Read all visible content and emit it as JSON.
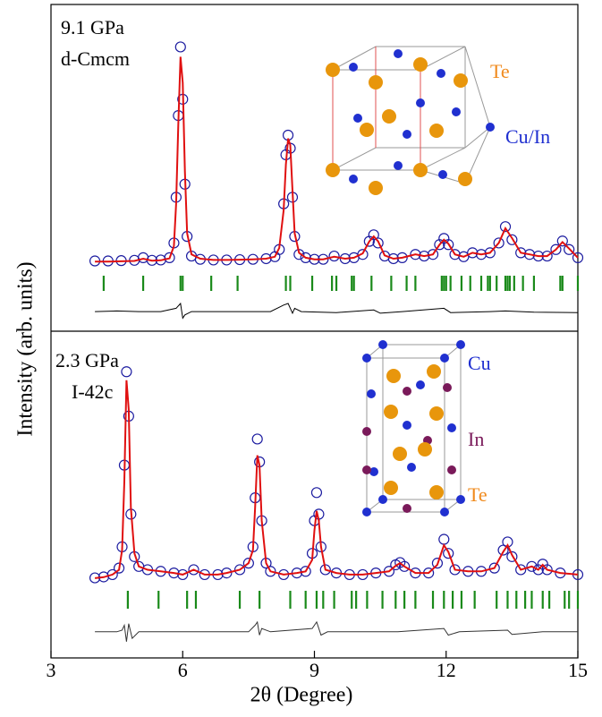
{
  "chart_data": {
    "type": "rietveld",
    "xlabel": "2θ  (Degree)",
    "ylabel": "Intensity (arb. units)",
    "xlim": [
      3,
      15
    ],
    "xticks": [
      3,
      6,
      9,
      12,
      15
    ],
    "panels": [
      {
        "annotations": [
          "9.1 GPa",
          "d-Cmcm"
        ],
        "atom_labels": [
          {
            "text": "Te",
            "color": "#f08a1c"
          },
          {
            "text": "Cu/In",
            "color": "#1f2fd0"
          }
        ],
        "ylim": [
          -21,
          79
        ],
        "x": [
          4.0,
          4.3,
          4.6,
          4.9,
          5.1,
          5.3,
          5.5,
          5.7,
          5.8,
          5.85,
          5.9,
          5.95,
          6.0,
          6.05,
          6.1,
          6.2,
          6.4,
          6.7,
          7.0,
          7.3,
          7.6,
          7.9,
          8.1,
          8.2,
          8.3,
          8.35,
          8.4,
          8.45,
          8.5,
          8.55,
          8.65,
          8.8,
          9.0,
          9.2,
          9.45,
          9.7,
          9.9,
          10.1,
          10.25,
          10.35,
          10.45,
          10.6,
          10.8,
          11.0,
          11.3,
          11.5,
          11.7,
          11.85,
          11.95,
          12.05,
          12.2,
          12.4,
          12.6,
          12.8,
          13.0,
          13.2,
          13.35,
          13.5,
          13.7,
          13.9,
          14.1,
          14.3,
          14.5,
          14.65,
          14.8,
          15.0
        ],
        "observed": {
          "color": "#1c1ca0",
          "values": [
            0.5,
            0.5,
            0.6,
            0.7,
            1.5,
            0.7,
            0.8,
            1.5,
            6,
            20,
            45,
            66,
            50,
            24,
            8,
            2,
            1,
            0.8,
            0.8,
            0.9,
            1,
            1.2,
            1.8,
            4,
            18,
            33,
            39,
            35,
            20,
            8,
            2.5,
            1.5,
            1,
            1,
            2,
            1.2,
            1.5,
            2.5,
            6.5,
            8.5,
            6,
            2,
            1.2,
            1.5,
            2.5,
            2,
            2.5,
            5.5,
            7.4,
            5.5,
            2.5,
            1.8,
            3,
            2.5,
            3,
            6,
            11,
            7,
            3,
            2.5,
            2,
            2,
            4,
            6.6,
            4,
            1.5
          ]
        },
        "calculated": {
          "color": "#e01010",
          "values": [
            0.3,
            0.3,
            0.4,
            0.5,
            1.2,
            0.6,
            0.7,
            1.3,
            5,
            18,
            42,
            63,
            55,
            28,
            9,
            2.5,
            1.2,
            0.8,
            0.8,
            0.9,
            1,
            1.2,
            1.8,
            4.5,
            16,
            30,
            38,
            36,
            22,
            9,
            3,
            1.5,
            1,
            1,
            1.8,
            1.2,
            1.5,
            2.8,
            6.5,
            8,
            6.5,
            2.2,
            1.2,
            1.5,
            2.5,
            2,
            2.5,
            5.5,
            7,
            5.8,
            2.5,
            1.8,
            3,
            2.5,
            3,
            6,
            10.5,
            7.5,
            3,
            2.5,
            2,
            2,
            4,
            6.3,
            4.3,
            1.5
          ]
        },
        "difference": {
          "color": "#000000",
          "x": [
            4.0,
            4.5,
            5.0,
            5.5,
            5.85,
            5.95,
            6.0,
            6.05,
            6.2,
            7.0,
            8.0,
            8.3,
            8.4,
            8.5,
            8.55,
            8.7,
            9.5,
            10.35,
            10.5,
            11.0,
            11.95,
            12.1,
            13.0,
            13.35,
            14.0,
            15.0
          ],
          "values": [
            -15,
            -14.8,
            -15,
            -15,
            -14,
            -12.5,
            -17,
            -16,
            -15,
            -15,
            -15,
            -13,
            -12.5,
            -15.5,
            -14,
            -15,
            -15.3,
            -14.5,
            -15.5,
            -15,
            -14,
            -15.3,
            -15,
            -14.8,
            -15.2,
            -15.3
          ]
        },
        "bragg_color": "#1a8a1a",
        "bragg_positions": [
          4.2,
          5.1,
          5.95,
          6.0,
          6.65,
          7.25,
          8.35,
          8.45,
          8.95,
          9.4,
          9.5,
          9.85,
          9.9,
          10.3,
          10.75,
          11.1,
          11.3,
          11.9,
          11.95,
          12.0,
          12.1,
          12.35,
          12.55,
          12.8,
          12.95,
          13.0,
          13.15,
          13.35,
          13.4,
          13.45,
          13.55,
          13.75,
          14.0,
          14.6,
          14.65,
          15.0
        ]
      },
      {
        "annotations": [
          "2.3 GPa",
          "I-42c"
        ],
        "atom_labels": [
          {
            "text": "Cu",
            "color": "#1f2fd0"
          },
          {
            "text": "In",
            "color": "#7a1a5a"
          },
          {
            "text": "Te",
            "color": "#f08a1c"
          }
        ],
        "ylim": [
          -24,
          76
        ],
        "x": [
          4.0,
          4.2,
          4.4,
          4.55,
          4.62,
          4.67,
          4.72,
          4.77,
          4.82,
          4.9,
          5.0,
          5.2,
          5.5,
          5.8,
          6.0,
          6.25,
          6.5,
          6.8,
          7.0,
          7.3,
          7.5,
          7.6,
          7.65,
          7.7,
          7.75,
          7.8,
          7.9,
          8.0,
          8.3,
          8.6,
          8.8,
          8.95,
          9.0,
          9.05,
          9.1,
          9.15,
          9.25,
          9.5,
          9.8,
          10.1,
          10.4,
          10.7,
          10.85,
          10.95,
          11.05,
          11.3,
          11.6,
          11.8,
          11.95,
          12.05,
          12.2,
          12.5,
          12.8,
          13.1,
          13.3,
          13.4,
          13.5,
          13.7,
          13.95,
          14.1,
          14.2,
          14.3,
          14.6,
          15.0
        ],
        "observed": {
          "color": "#1c1ca0",
          "values": [
            0.5,
            0.8,
            1.5,
            3.5,
            10,
            35,
            63.6,
            50,
            20,
            7,
            4,
            3,
            2.5,
            2,
            1.5,
            3,
            1.5,
            1.5,
            2,
            3,
            5,
            10,
            25,
            43,
            36,
            18,
            5,
            2.5,
            1.5,
            2,
            2.5,
            8,
            18,
            26.6,
            20,
            10,
            3,
            2,
            1.5,
            1.5,
            2,
            2.5,
            4.5,
            5.2,
            4,
            2,
            2,
            5,
            12.3,
            8,
            3,
            2.5,
            2.5,
            3.5,
            9,
            11.5,
            7,
            3,
            4,
            3,
            4.7,
            3,
            2,
            1.5
          ]
        },
        "calculated": {
          "color": "#e01010",
          "values": [
            0.4,
            0.7,
            1.5,
            3,
            9,
            30,
            61,
            52,
            22,
            8,
            4,
            3,
            2.5,
            2,
            1.5,
            3,
            1.5,
            1.5,
            2,
            3,
            5,
            9,
            22,
            38,
            35,
            18,
            5,
            2.5,
            1.5,
            2,
            2.5,
            6,
            15,
            21,
            18,
            10,
            3,
            2,
            1.5,
            1.5,
            2,
            2.5,
            4.2,
            5,
            4,
            2,
            2,
            4.5,
            10.5,
            8.5,
            3,
            2.5,
            2.5,
            3.5,
            8.5,
            10.5,
            7.5,
            3,
            4,
            3,
            4.5,
            3,
            2,
            1.5
          ]
        },
        "difference": {
          "color": "#333333",
          "x": [
            4.0,
            4.5,
            4.62,
            4.67,
            4.72,
            4.77,
            4.85,
            5.0,
            6.0,
            7.5,
            7.65,
            7.7,
            7.75,
            7.8,
            8.0,
            8.95,
            9.05,
            9.15,
            9.3,
            10.9,
            11.95,
            12.05,
            12.3,
            13.4,
            13.5,
            14.2,
            15.0
          ],
          "values": [
            -16,
            -16,
            -15.5,
            -14,
            -19,
            -13.5,
            -18,
            -16,
            -16,
            -16,
            -14,
            -13,
            -17,
            -15,
            -16,
            -15,
            -13,
            -17,
            -16,
            -16,
            -15,
            -17,
            -16,
            -15.5,
            -16.8,
            -16,
            -16
          ]
        },
        "bragg_color": "#1a8a1a",
        "bragg_positions": [
          4.75,
          5.45,
          6.1,
          6.3,
          7.3,
          7.75,
          8.45,
          8.8,
          9.05,
          9.2,
          9.45,
          9.85,
          9.95,
          10.2,
          10.55,
          10.85,
          11.05,
          11.3,
          11.7,
          11.95,
          12.15,
          12.35,
          12.65,
          13.15,
          13.4,
          13.6,
          13.8,
          13.95,
          14.2,
          14.35,
          14.7,
          14.8,
          15.0
        ]
      }
    ]
  }
}
